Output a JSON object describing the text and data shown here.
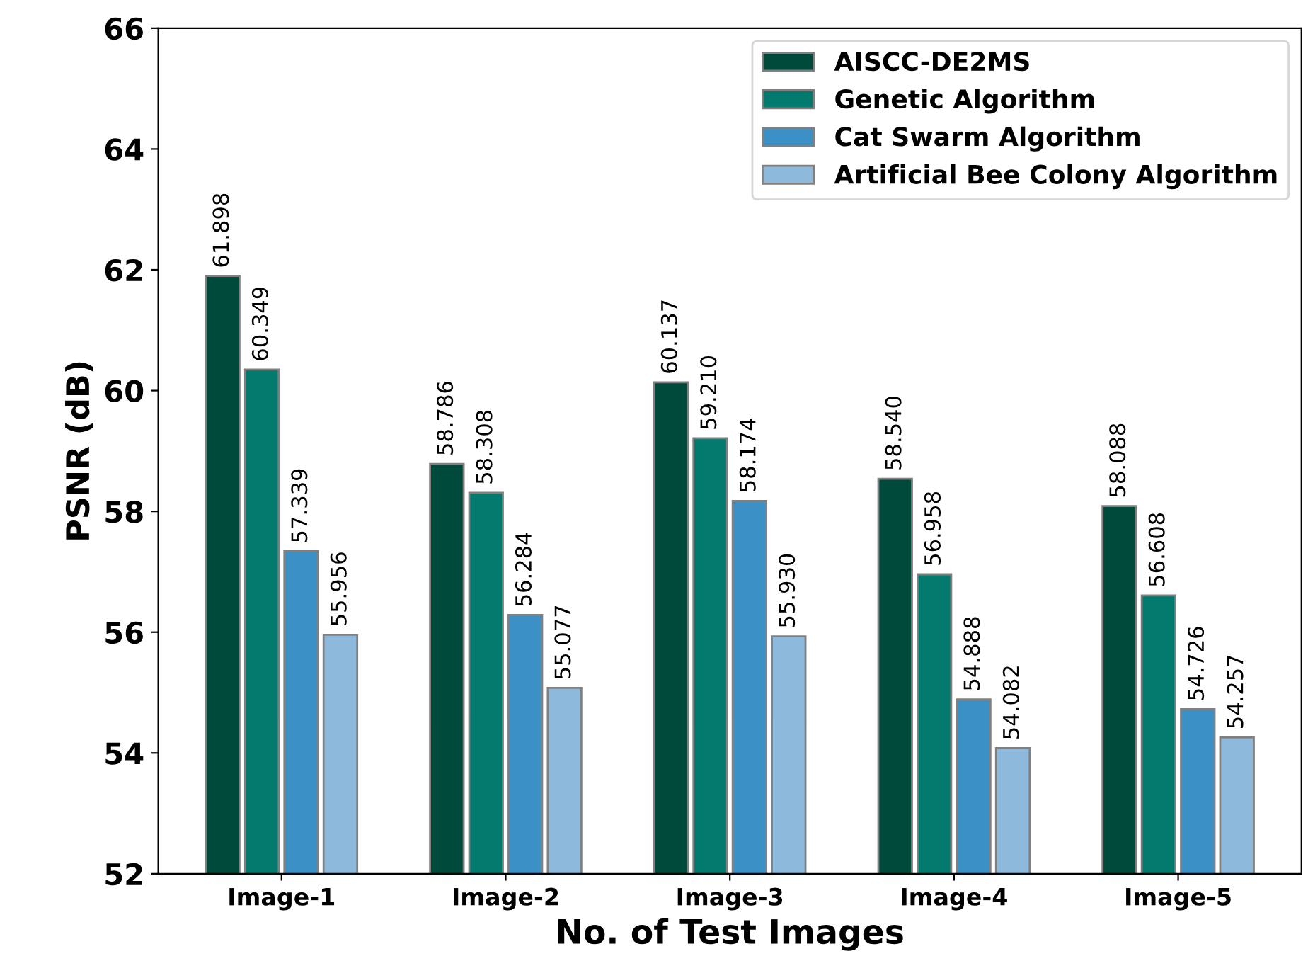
{
  "chart_data": {
    "type": "bar",
    "xlabel": "No. of Test Images",
    "ylabel": "PSNR (dB)",
    "categories": [
      "Image-1",
      "Image-2",
      "Image-3",
      "Image-4",
      "Image-5"
    ],
    "series": [
      {
        "name": "AISCC-DE2MS",
        "color": "#004a3c",
        "values": [
          61.898,
          58.786,
          60.137,
          58.54,
          58.088
        ],
        "value_labels": [
          "61.898",
          "58.786",
          "60.137",
          "58.540",
          "58.088"
        ]
      },
      {
        "name": "Genetic Algorithm",
        "color": "#037a6e",
        "values": [
          60.349,
          58.308,
          59.21,
          56.958,
          56.608
        ],
        "value_labels": [
          "60.349",
          "58.308",
          "59.210",
          "56.958",
          "56.608"
        ]
      },
      {
        "name": "Cat Swarm Algorithm",
        "color": "#3b91c6",
        "values": [
          57.339,
          56.284,
          58.174,
          54.888,
          54.726
        ],
        "value_labels": [
          "57.339",
          "56.284",
          "58.174",
          "54.888",
          "54.726"
        ]
      },
      {
        "name": "Artificial Bee Colony Algorithm",
        "color": "#8db9dc",
        "values": [
          55.956,
          55.077,
          55.93,
          54.082,
          54.257
        ],
        "value_labels": [
          "55.956",
          "55.077",
          "55.930",
          "54.082",
          "54.257"
        ]
      }
    ],
    "ylim": [
      52,
      66
    ],
    "yticks": [
      52,
      54,
      56,
      58,
      60,
      62,
      64,
      66
    ],
    "legend": "top right",
    "grid": false
  }
}
